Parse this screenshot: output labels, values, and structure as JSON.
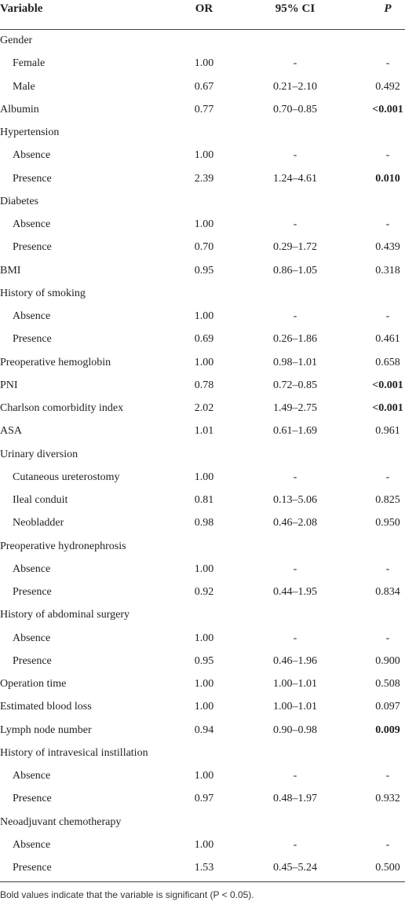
{
  "table": {
    "columns": [
      "Variable",
      "OR",
      "95% CI",
      "P"
    ],
    "rows": [
      {
        "variable": "Gender",
        "levels": [
          {
            "variable": "Female",
            "or": "1.00",
            "ci": "-",
            "p": "-"
          },
          {
            "variable": "Male",
            "or": "0.67",
            "ci": "0.21–2.10",
            "p": "0.492"
          }
        ]
      },
      {
        "variable": "Albumin",
        "or": "0.77",
        "ci": "0.70–0.85",
        "p": "<0.001",
        "p_bold": true
      },
      {
        "variable": "Hypertension",
        "levels": [
          {
            "variable": "Absence",
            "or": "1.00",
            "ci": "-",
            "p": "-"
          },
          {
            "variable": "Presence",
            "or": "2.39",
            "ci": "1.24–4.61",
            "p": "0.010",
            "p_bold": true
          }
        ]
      },
      {
        "variable": "Diabetes",
        "levels": [
          {
            "variable": "Absence",
            "or": "1.00",
            "ci": "-",
            "p": "-"
          },
          {
            "variable": "Presence",
            "or": "0.70",
            "ci": "0.29–1.72",
            "p": "0.439"
          }
        ]
      },
      {
        "variable": "BMI",
        "or": "0.95",
        "ci": "0.86–1.05",
        "p": "0.318"
      },
      {
        "variable": "History of smoking",
        "levels": [
          {
            "variable": "Absence",
            "or": "1.00",
            "ci": "-",
            "p": "-"
          },
          {
            "variable": "Presence",
            "or": "0.69",
            "ci": "0.26–1.86",
            "p": "0.461"
          }
        ]
      },
      {
        "variable": "Preoperative hemoglobin",
        "or": "1.00",
        "ci": "0.98–1.01",
        "p": "0.658"
      },
      {
        "variable": "PNI",
        "or": "0.78",
        "ci": "0.72–0.85",
        "p": "<0.001",
        "p_bold": true
      },
      {
        "variable": "Charlson comorbidity index",
        "or": "2.02",
        "ci": "1.49–2.75",
        "p": "<0.001",
        "p_bold": true
      },
      {
        "variable": "ASA",
        "or": "1.01",
        "ci": "0.61–1.69",
        "p": "0.961"
      },
      {
        "variable": "Urinary diversion",
        "levels": [
          {
            "variable": "Cutaneous ureterostomy",
            "or": "1.00",
            "ci": "-",
            "p": "-"
          },
          {
            "variable": "Ileal conduit",
            "or": "0.81",
            "ci": "0.13–5.06",
            "p": "0.825"
          },
          {
            "variable": "Neobladder",
            "or": "0.98",
            "ci": "0.46–2.08",
            "p": "0.950"
          }
        ]
      },
      {
        "variable": "Preoperative hydronephrosis",
        "levels": [
          {
            "variable": "Absence",
            "or": "1.00",
            "ci": "-",
            "p": "-"
          },
          {
            "variable": "Presence",
            "or": "0.92",
            "ci": "0.44–1.95",
            "p": "0.834"
          }
        ]
      },
      {
        "variable": "History of abdominal surgery",
        "levels": [
          {
            "variable": "Absence",
            "or": "1.00",
            "ci": "-",
            "p": "-"
          },
          {
            "variable": "Presence",
            "or": "0.95",
            "ci": "0.46–1.96",
            "p": "0.900"
          }
        ]
      },
      {
        "variable": "Operation time",
        "or": "1.00",
        "ci": "1.00–1.01",
        "p": "0.508"
      },
      {
        "variable": "Estimated blood loss",
        "or": "1.00",
        "ci": "1.00–1.01",
        "p": "0.097"
      },
      {
        "variable": "Lymph node number",
        "or": "0.94",
        "ci": "0.90–0.98",
        "p": "0.009",
        "p_bold": true
      },
      {
        "variable": "History of intravesical instillation",
        "levels": [
          {
            "variable": "Absence",
            "or": "1.00",
            "ci": "-",
            "p": "-"
          },
          {
            "variable": "Presence",
            "or": "0.97",
            "ci": "0.48–1.97",
            "p": "0.932"
          }
        ]
      },
      {
        "variable": "Neoadjuvant chemotherapy",
        "levels": [
          {
            "variable": "Absence",
            "or": "1.00",
            "ci": "-",
            "p": "-"
          },
          {
            "variable": "Presence",
            "or": "1.53",
            "ci": "0.45–5.24",
            "p": "0.500"
          }
        ]
      }
    ],
    "footnote": "Bold values indicate that the variable is significant (P < 0.05)."
  }
}
